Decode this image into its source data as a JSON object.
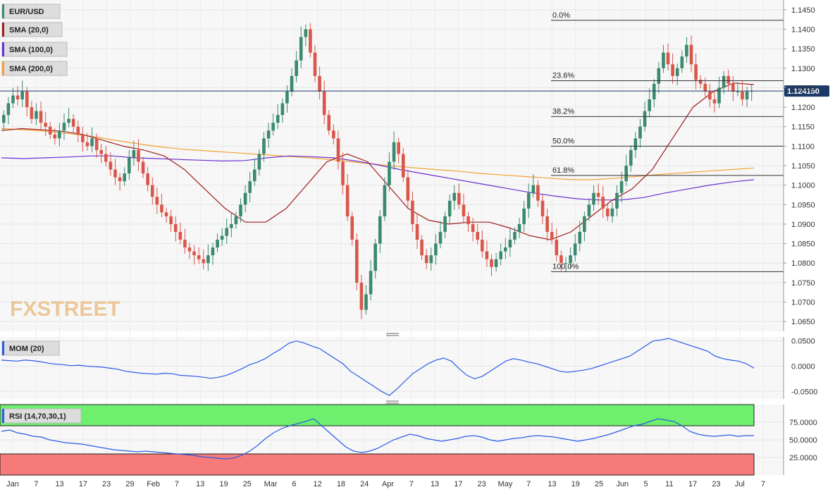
{
  "legend": {
    "symbol": "EUR/USD",
    "sma20": "SMA (20,0)",
    "sma100": "SMA (100,0)",
    "sma200": "SMA (200,0)",
    "mom": "MOM (20)",
    "rsi": "RSI (14,70,30,1)"
  },
  "last_price": "1.124150",
  "watermark": "FXSTREET",
  "colors": {
    "up": "#3b8a70",
    "down": "#d9574a",
    "sma20": "#a01c1c",
    "sma100": "#6a2fd1",
    "sma200": "#f2a233",
    "mom": "#2a5ce6",
    "rsi": "#2a5ce6",
    "rsi_upper_zone": "#6ef06e",
    "rsi_lower_zone": "#f77a7a",
    "price_tag": "#1d3a66"
  },
  "chart_data": [
    {
      "type": "candlestick",
      "price_axis": {
        "ylim": [
          1.0625,
          1.1475
        ],
        "ticks": [
          "1.1450",
          "1.1400",
          "1.1350",
          "1.1300",
          "1.1250",
          "1.1200",
          "1.1150",
          "1.1100",
          "1.1050",
          "1.1000",
          "1.0950",
          "1.0900",
          "1.0850",
          "1.0800",
          "1.0750",
          "1.0700",
          "1.0650"
        ]
      },
      "x_labels": [
        "Jan",
        "7",
        "13",
        "17",
        "23",
        "29",
        "Feb",
        "7",
        "13",
        "19",
        "25",
        "Mar",
        "6",
        "12",
        "18",
        "24",
        "Apr",
        "7",
        "13",
        "17",
        "23",
        "May",
        "7",
        "13",
        "19",
        "25",
        "Jun",
        "5",
        "11",
        "17",
        "23",
        "Jul",
        "7"
      ],
      "fibonacci": [
        {
          "label": "0.0%",
          "value": 1.1423
        },
        {
          "label": "23.6%",
          "value": 1.1268
        },
        {
          "label": "38.2%",
          "value": 1.1176
        },
        {
          "label": "50.0%",
          "value": 1.11
        },
        {
          "label": "61.8%",
          "value": 1.1025
        },
        {
          "label": "100.0%",
          "value": 1.0778
        }
      ],
      "close": [
        1.118,
        1.121,
        1.123,
        1.122,
        1.124,
        1.12,
        1.117,
        1.119,
        1.116,
        1.115,
        1.113,
        1.112,
        1.114,
        1.116,
        1.117,
        1.115,
        1.113,
        1.111,
        1.11,
        1.112,
        1.109,
        1.108,
        1.106,
        1.104,
        1.102,
        1.101,
        1.103,
        1.107,
        1.109,
        1.106,
        1.103,
        1.1,
        1.097,
        1.095,
        1.093,
        1.092,
        1.09,
        1.088,
        1.086,
        1.084,
        1.083,
        1.082,
        1.081,
        1.08,
        1.082,
        1.084,
        1.086,
        1.087,
        1.089,
        1.09,
        1.092,
        1.095,
        1.098,
        1.101,
        1.104,
        1.108,
        1.112,
        1.114,
        1.116,
        1.118,
        1.121,
        1.124,
        1.128,
        1.132,
        1.138,
        1.14,
        1.134,
        1.128,
        1.124,
        1.118,
        1.114,
        1.112,
        1.106,
        1.1,
        1.092,
        1.086,
        1.075,
        1.068,
        1.072,
        1.078,
        1.085,
        1.092,
        1.1,
        1.106,
        1.111,
        1.108,
        1.102,
        1.096,
        1.09,
        1.086,
        1.082,
        1.08,
        1.082,
        1.085,
        1.088,
        1.092,
        1.096,
        1.098,
        1.095,
        1.092,
        1.09,
        1.088,
        1.086,
        1.083,
        1.081,
        1.079,
        1.081,
        1.083,
        1.084,
        1.086,
        1.088,
        1.09,
        1.094,
        1.098,
        1.1,
        1.096,
        1.092,
        1.088,
        1.086,
        1.082,
        1.08,
        1.08,
        1.082,
        1.085,
        1.088,
        1.092,
        1.095,
        1.098,
        1.097,
        1.094,
        1.092,
        1.094,
        1.098,
        1.101,
        1.105,
        1.109,
        1.112,
        1.115,
        1.119,
        1.122,
        1.126,
        1.13,
        1.134,
        1.131,
        1.128,
        1.13,
        1.133,
        1.136,
        1.131,
        1.127,
        1.126,
        1.124,
        1.122,
        1.121,
        1.125,
        1.128,
        1.126,
        1.124,
        1.124,
        1.122,
        1.124,
        1.1242
      ],
      "sma20": [
        1.114,
        1.1145,
        1.1142,
        1.1138,
        1.113,
        1.1115,
        1.11,
        1.109,
        1.1075,
        1.104,
        1.099,
        1.094,
        1.0905,
        1.0905,
        1.094,
        1.1,
        1.106,
        1.108,
        1.106,
        1.1,
        1.094,
        1.091,
        1.09,
        1.0905,
        1.0905,
        1.089,
        1.087,
        1.086,
        1.088,
        1.092,
        1.096,
        1.099,
        1.104,
        1.112,
        1.12,
        1.124,
        1.1262,
        1.1258
      ],
      "sma100": [
        1.107,
        1.1068,
        1.107,
        1.1072,
        1.1075,
        1.1075,
        1.107,
        1.1068,
        1.1066,
        1.1064,
        1.1062,
        1.1063,
        1.107,
        1.1075,
        1.1073,
        1.107,
        1.1062,
        1.1052,
        1.104,
        1.103,
        1.102,
        1.101,
        1.1,
        1.099,
        1.098,
        1.0972,
        1.0965,
        1.0962,
        1.0962,
        1.0968,
        1.098,
        1.099,
        1.1,
        1.1008,
        1.1014
      ],
      "sma200": [
        1.1145,
        1.1142,
        1.1138,
        1.1132,
        1.1125,
        1.1115,
        1.1106,
        1.1098,
        1.1092,
        1.1088,
        1.1084,
        1.108,
        1.1076,
        1.1072,
        1.1068,
        1.1062,
        1.1056,
        1.105,
        1.1045,
        1.104,
        1.1036,
        1.103,
        1.1026,
        1.1022,
        1.1018,
        1.1014,
        1.1014,
        1.1018,
        1.1023,
        1.1028,
        1.1032,
        1.1036,
        1.104,
        1.1044
      ]
    },
    {
      "type": "line",
      "name": "MOM (20)",
      "ylim": [
        -0.065,
        0.058
      ],
      "ticks": [
        "0.0500",
        "0.0000",
        "-0.0500"
      ],
      "values": [
        0.012,
        0.011,
        0.01,
        0.012,
        0.011,
        0.009,
        0.006,
        0.004,
        0.003,
        0.001,
        0.002,
        0.0,
        -0.001,
        -0.002,
        -0.004,
        -0.006,
        -0.01,
        -0.012,
        -0.014,
        -0.015,
        -0.016,
        -0.014,
        -0.015,
        -0.018,
        -0.019,
        -0.02,
        -0.022,
        -0.024,
        -0.022,
        -0.018,
        -0.012,
        -0.005,
        0.003,
        0.008,
        0.015,
        0.025,
        0.034,
        0.045,
        0.05,
        0.046,
        0.04,
        0.035,
        0.025,
        0.015,
        0.005,
        -0.01,
        -0.02,
        -0.03,
        -0.04,
        -0.05,
        -0.058,
        -0.045,
        -0.03,
        -0.015,
        -0.005,
        0.005,
        0.012,
        0.016,
        0.01,
        -0.005,
        -0.018,
        -0.025,
        -0.02,
        -0.01,
        0.0,
        0.01,
        0.015,
        0.012,
        0.008,
        0.005,
        0.0,
        -0.005,
        -0.01,
        -0.012,
        -0.01,
        -0.008,
        -0.005,
        0.0,
        0.005,
        0.01,
        0.015,
        0.02,
        0.03,
        0.04,
        0.05,
        0.052,
        0.055,
        0.05,
        0.045,
        0.04,
        0.035,
        0.03,
        0.02,
        0.015,
        0.012,
        0.01,
        0.005,
        -0.004
      ]
    },
    {
      "type": "line",
      "name": "RSI (14,70,30,1)",
      "ylim": [
        0,
        100
      ],
      "upper": 70,
      "lower": 30,
      "ticks": [
        "75.0000",
        "50.0000",
        "25.0000"
      ],
      "values": [
        62,
        64,
        60,
        58,
        55,
        54,
        50,
        48,
        46,
        45,
        44,
        42,
        40,
        38,
        36,
        35,
        34,
        33,
        34,
        33,
        32,
        31,
        30,
        29,
        28,
        26,
        25,
        24,
        23,
        24,
        28,
        34,
        42,
        52,
        60,
        66,
        70,
        73,
        76,
        80,
        70,
        60,
        50,
        40,
        34,
        32,
        34,
        38,
        44,
        50,
        54,
        58,
        56,
        52,
        50,
        48,
        50,
        52,
        55,
        56,
        54,
        50,
        48,
        50,
        52,
        53,
        55,
        56,
        55,
        54,
        52,
        50,
        48,
        50,
        52,
        55,
        58,
        62,
        66,
        70,
        72,
        76,
        80,
        78,
        76,
        70,
        62,
        58,
        56,
        55,
        56,
        57,
        55,
        56,
        56
      ]
    }
  ]
}
